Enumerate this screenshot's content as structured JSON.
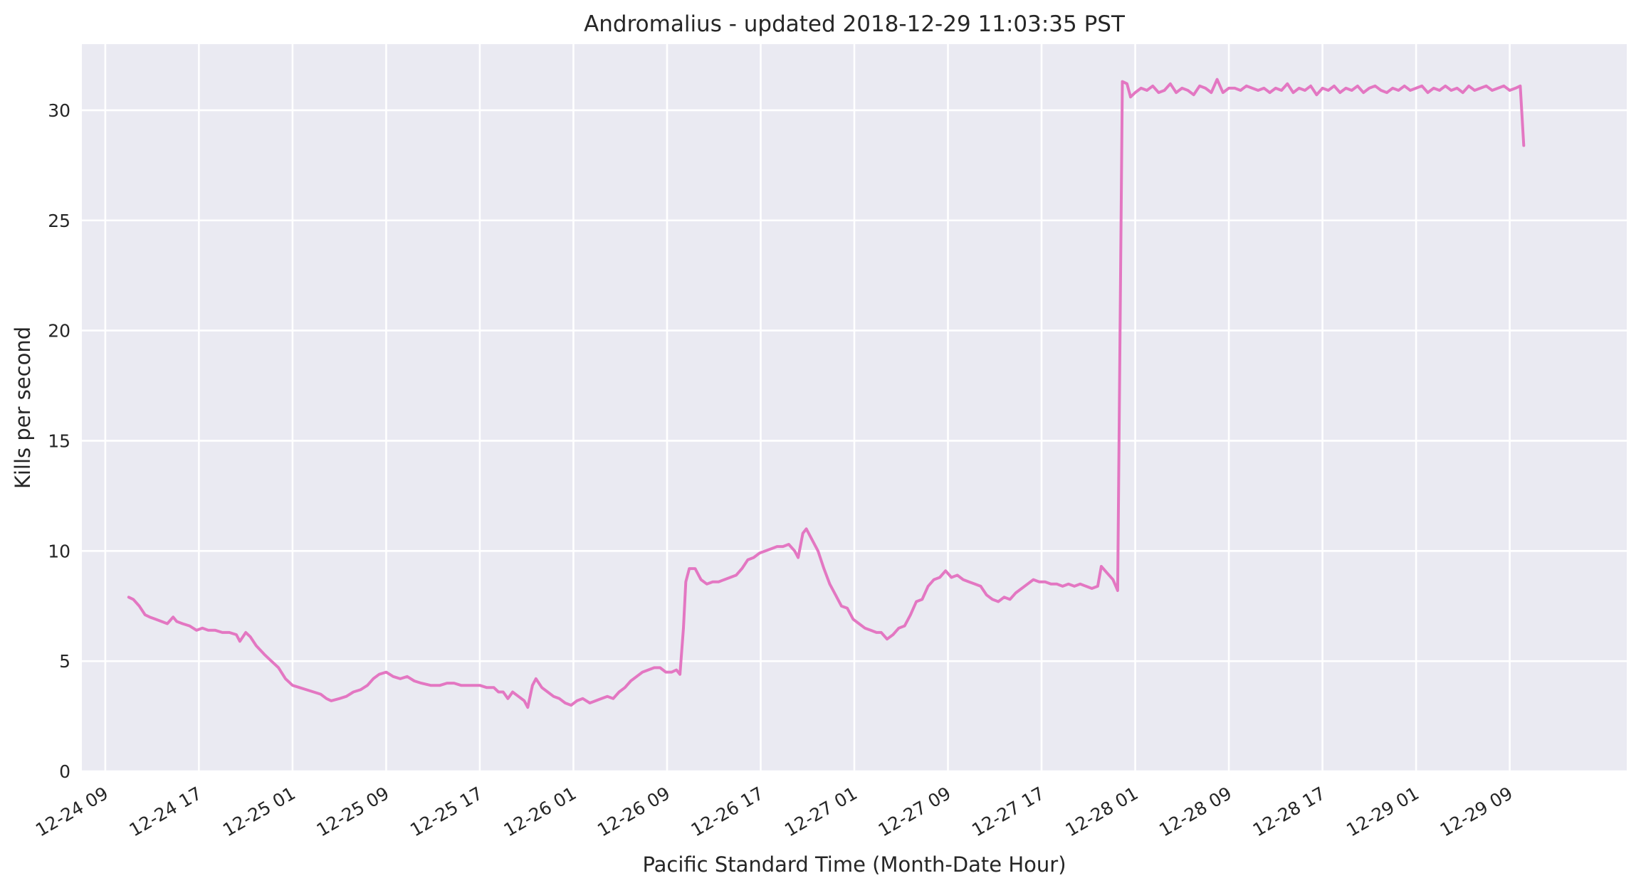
{
  "chart_data": {
    "type": "line",
    "title": "Andromalius - updated 2018-12-29 11:03:35 PST",
    "xlabel": "Pacific Standard Time (Month-Date Hour)",
    "ylabel": "Kills per second",
    "x_unit": "hours since 2018-12-24 00:00 PST",
    "xlim": [
      7.0,
      139.0
    ],
    "ylim": [
      0,
      33
    ],
    "x_ticks": [
      {
        "x": 9,
        "label": "12-24 09"
      },
      {
        "x": 17,
        "label": "12-24 17"
      },
      {
        "x": 25,
        "label": "12-25 01"
      },
      {
        "x": 33,
        "label": "12-25 09"
      },
      {
        "x": 41,
        "label": "12-25 17"
      },
      {
        "x": 49,
        "label": "12-26 01"
      },
      {
        "x": 57,
        "label": "12-26 09"
      },
      {
        "x": 65,
        "label": "12-26 17"
      },
      {
        "x": 73,
        "label": "12-27 01"
      },
      {
        "x": 81,
        "label": "12-27 09"
      },
      {
        "x": 89,
        "label": "12-27 17"
      },
      {
        "x": 97,
        "label": "12-28 01"
      },
      {
        "x": 105,
        "label": "12-28 09"
      },
      {
        "x": 113,
        "label": "12-28 17"
      },
      {
        "x": 121,
        "label": "12-29 01"
      },
      {
        "x": 129,
        "label": "12-29 09"
      }
    ],
    "y_ticks": [
      {
        "y": 0,
        "label": "0"
      },
      {
        "y": 5,
        "label": "5"
      },
      {
        "y": 10,
        "label": "10"
      },
      {
        "y": 15,
        "label": "15"
      },
      {
        "y": 20,
        "label": "20"
      },
      {
        "y": 25,
        "label": "25"
      },
      {
        "y": 30,
        "label": "30"
      }
    ],
    "grid": true,
    "legend": "none",
    "series": [
      {
        "name": "Andromalius",
        "color": "#e377c2",
        "points": [
          [
            11.0,
            7.9
          ],
          [
            11.4,
            7.8
          ],
          [
            11.9,
            7.5
          ],
          [
            12.4,
            7.1
          ],
          [
            12.8,
            7.0
          ],
          [
            13.3,
            6.9
          ],
          [
            13.8,
            6.8
          ],
          [
            14.3,
            6.7
          ],
          [
            14.8,
            7.0
          ],
          [
            15.1,
            6.8
          ],
          [
            15.6,
            6.7
          ],
          [
            16.2,
            6.6
          ],
          [
            16.8,
            6.4
          ],
          [
            17.3,
            6.5
          ],
          [
            17.8,
            6.4
          ],
          [
            18.4,
            6.4
          ],
          [
            19.0,
            6.3
          ],
          [
            19.6,
            6.3
          ],
          [
            20.2,
            6.2
          ],
          [
            20.5,
            5.9
          ],
          [
            21.0,
            6.3
          ],
          [
            21.4,
            6.1
          ],
          [
            21.9,
            5.7
          ],
          [
            22.6,
            5.3
          ],
          [
            23.2,
            5.0
          ],
          [
            23.8,
            4.7
          ],
          [
            24.4,
            4.2
          ],
          [
            25.0,
            3.9
          ],
          [
            25.6,
            3.8
          ],
          [
            26.2,
            3.7
          ],
          [
            26.8,
            3.6
          ],
          [
            27.4,
            3.5
          ],
          [
            27.9,
            3.3
          ],
          [
            28.3,
            3.2
          ],
          [
            29.0,
            3.3
          ],
          [
            29.6,
            3.4
          ],
          [
            30.2,
            3.6
          ],
          [
            30.8,
            3.7
          ],
          [
            31.4,
            3.9
          ],
          [
            31.9,
            4.2
          ],
          [
            32.4,
            4.4
          ],
          [
            33.0,
            4.5
          ],
          [
            33.6,
            4.3
          ],
          [
            34.2,
            4.2
          ],
          [
            34.8,
            4.3
          ],
          [
            35.4,
            4.1
          ],
          [
            36.0,
            4.0
          ],
          [
            36.8,
            3.9
          ],
          [
            37.6,
            3.9
          ],
          [
            38.2,
            4.0
          ],
          [
            38.8,
            4.0
          ],
          [
            39.4,
            3.9
          ],
          [
            40.2,
            3.9
          ],
          [
            41.0,
            3.9
          ],
          [
            41.6,
            3.8
          ],
          [
            42.2,
            3.8
          ],
          [
            42.6,
            3.6
          ],
          [
            43.0,
            3.6
          ],
          [
            43.4,
            3.3
          ],
          [
            43.8,
            3.6
          ],
          [
            44.3,
            3.4
          ],
          [
            44.8,
            3.2
          ],
          [
            45.1,
            2.9
          ],
          [
            45.5,
            3.9
          ],
          [
            45.8,
            4.2
          ],
          [
            46.3,
            3.8
          ],
          [
            46.8,
            3.6
          ],
          [
            47.3,
            3.4
          ],
          [
            47.8,
            3.3
          ],
          [
            48.3,
            3.1
          ],
          [
            48.8,
            3.0
          ],
          [
            49.3,
            3.2
          ],
          [
            49.8,
            3.3
          ],
          [
            50.4,
            3.1
          ],
          [
            50.9,
            3.2
          ],
          [
            51.4,
            3.3
          ],
          [
            51.9,
            3.4
          ],
          [
            52.4,
            3.3
          ],
          [
            52.9,
            3.6
          ],
          [
            53.4,
            3.8
          ],
          [
            53.9,
            4.1
          ],
          [
            54.4,
            4.3
          ],
          [
            54.9,
            4.5
          ],
          [
            55.4,
            4.6
          ],
          [
            55.9,
            4.7
          ],
          [
            56.4,
            4.7
          ],
          [
            56.9,
            4.5
          ],
          [
            57.4,
            4.5
          ],
          [
            57.8,
            4.6
          ],
          [
            58.1,
            4.4
          ],
          [
            58.4,
            6.5
          ],
          [
            58.6,
            8.6
          ],
          [
            58.9,
            9.2
          ],
          [
            59.4,
            9.2
          ],
          [
            59.9,
            8.7
          ],
          [
            60.4,
            8.5
          ],
          [
            60.9,
            8.6
          ],
          [
            61.4,
            8.6
          ],
          [
            61.9,
            8.7
          ],
          [
            62.4,
            8.8
          ],
          [
            62.9,
            8.9
          ],
          [
            63.4,
            9.2
          ],
          [
            63.9,
            9.6
          ],
          [
            64.4,
            9.7
          ],
          [
            64.9,
            9.9
          ],
          [
            65.4,
            10.0
          ],
          [
            65.9,
            10.1
          ],
          [
            66.4,
            10.2
          ],
          [
            66.9,
            10.2
          ],
          [
            67.4,
            10.3
          ],
          [
            67.9,
            10.0
          ],
          [
            68.2,
            9.7
          ],
          [
            68.6,
            10.8
          ],
          [
            68.9,
            11.0
          ],
          [
            69.4,
            10.5
          ],
          [
            69.9,
            10.0
          ],
          [
            70.4,
            9.2
          ],
          [
            70.9,
            8.5
          ],
          [
            71.4,
            8.0
          ],
          [
            71.9,
            7.5
          ],
          [
            72.4,
            7.4
          ],
          [
            72.9,
            6.9
          ],
          [
            73.4,
            6.7
          ],
          [
            73.9,
            6.5
          ],
          [
            74.4,
            6.4
          ],
          [
            74.9,
            6.3
          ],
          [
            75.3,
            6.3
          ],
          [
            75.8,
            6.0
          ],
          [
            76.3,
            6.2
          ],
          [
            76.8,
            6.5
          ],
          [
            77.3,
            6.6
          ],
          [
            77.8,
            7.1
          ],
          [
            78.3,
            7.7
          ],
          [
            78.8,
            7.8
          ],
          [
            79.3,
            8.4
          ],
          [
            79.8,
            8.7
          ],
          [
            80.3,
            8.8
          ],
          [
            80.8,
            9.1
          ],
          [
            81.3,
            8.8
          ],
          [
            81.8,
            8.9
          ],
          [
            82.3,
            8.7
          ],
          [
            82.8,
            8.6
          ],
          [
            83.3,
            8.5
          ],
          [
            83.8,
            8.4
          ],
          [
            84.3,
            8.0
          ],
          [
            84.8,
            7.8
          ],
          [
            85.3,
            7.7
          ],
          [
            85.8,
            7.9
          ],
          [
            86.3,
            7.8
          ],
          [
            86.8,
            8.1
          ],
          [
            87.3,
            8.3
          ],
          [
            87.8,
            8.5
          ],
          [
            88.3,
            8.7
          ],
          [
            88.8,
            8.6
          ],
          [
            89.3,
            8.6
          ],
          [
            89.8,
            8.5
          ],
          [
            90.3,
            8.5
          ],
          [
            90.8,
            8.4
          ],
          [
            91.3,
            8.5
          ],
          [
            91.8,
            8.4
          ],
          [
            92.3,
            8.5
          ],
          [
            92.8,
            8.4
          ],
          [
            93.3,
            8.3
          ],
          [
            93.8,
            8.4
          ],
          [
            94.1,
            9.3
          ],
          [
            94.6,
            9.0
          ],
          [
            95.1,
            8.7
          ],
          [
            95.5,
            8.2
          ],
          [
            95.9,
            31.3
          ],
          [
            96.3,
            31.2
          ],
          [
            96.6,
            30.6
          ],
          [
            97.0,
            30.8
          ],
          [
            97.5,
            31.0
          ],
          [
            98.0,
            30.9
          ],
          [
            98.5,
            31.1
          ],
          [
            99.0,
            30.8
          ],
          [
            99.5,
            30.9
          ],
          [
            100.0,
            31.2
          ],
          [
            100.5,
            30.8
          ],
          [
            101.0,
            31.0
          ],
          [
            101.5,
            30.9
          ],
          [
            102.0,
            30.7
          ],
          [
            102.5,
            31.1
          ],
          [
            103.0,
            31.0
          ],
          [
            103.5,
            30.8
          ],
          [
            104.0,
            31.4
          ],
          [
            104.5,
            30.8
          ],
          [
            105.0,
            31.0
          ],
          [
            105.5,
            31.0
          ],
          [
            106.0,
            30.9
          ],
          [
            106.5,
            31.1
          ],
          [
            107.0,
            31.0
          ],
          [
            107.5,
            30.9
          ],
          [
            108.0,
            31.0
          ],
          [
            108.5,
            30.8
          ],
          [
            109.0,
            31.0
          ],
          [
            109.5,
            30.9
          ],
          [
            110.0,
            31.2
          ],
          [
            110.5,
            30.8
          ],
          [
            111.0,
            31.0
          ],
          [
            111.5,
            30.9
          ],
          [
            112.0,
            31.1
          ],
          [
            112.5,
            30.7
          ],
          [
            113.0,
            31.0
          ],
          [
            113.5,
            30.9
          ],
          [
            114.0,
            31.1
          ],
          [
            114.5,
            30.8
          ],
          [
            115.0,
            31.0
          ],
          [
            115.5,
            30.9
          ],
          [
            116.0,
            31.1
          ],
          [
            116.5,
            30.8
          ],
          [
            117.0,
            31.0
          ],
          [
            117.5,
            31.1
          ],
          [
            118.0,
            30.9
          ],
          [
            118.5,
            30.8
          ],
          [
            119.0,
            31.0
          ],
          [
            119.5,
            30.9
          ],
          [
            120.0,
            31.1
          ],
          [
            120.5,
            30.9
          ],
          [
            121.0,
            31.0
          ],
          [
            121.5,
            31.1
          ],
          [
            122.0,
            30.8
          ],
          [
            122.5,
            31.0
          ],
          [
            123.0,
            30.9
          ],
          [
            123.5,
            31.1
          ],
          [
            124.0,
            30.9
          ],
          [
            124.5,
            31.0
          ],
          [
            125.0,
            30.8
          ],
          [
            125.5,
            31.1
          ],
          [
            126.0,
            30.9
          ],
          [
            126.5,
            31.0
          ],
          [
            127.0,
            31.1
          ],
          [
            127.5,
            30.9
          ],
          [
            128.0,
            31.0
          ],
          [
            128.5,
            31.1
          ],
          [
            129.0,
            30.9
          ],
          [
            129.5,
            31.0
          ],
          [
            129.9,
            31.1
          ],
          [
            130.2,
            28.4
          ]
        ]
      }
    ]
  },
  "colors": {
    "plot_background": "#eaeaf2",
    "grid": "#ffffff",
    "line": "#e377c2",
    "text": "#262626"
  }
}
